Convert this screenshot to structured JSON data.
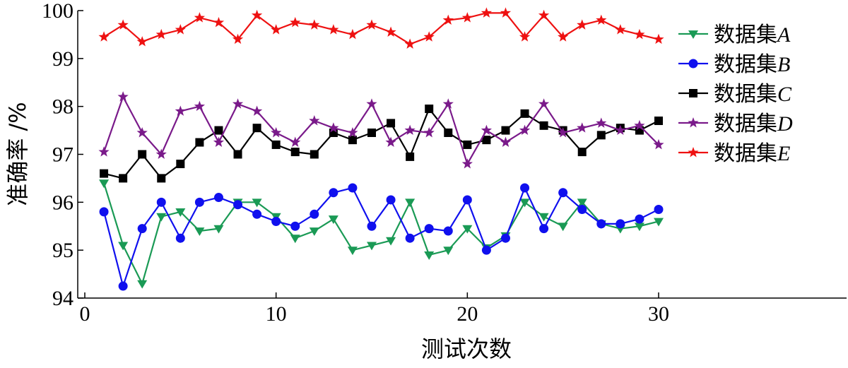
{
  "chart_data": {
    "type": "line",
    "title": "",
    "xlabel": "测试次数",
    "ylabel": "准确率 /%",
    "xlim": [
      0,
      39
    ],
    "ylim": [
      94,
      100
    ],
    "xticks": [
      "0",
      "10",
      "20",
      "30"
    ],
    "yticks": [
      "94",
      "95",
      "96",
      "97",
      "98",
      "99",
      "100"
    ],
    "x": [
      1,
      2,
      3,
      4,
      5,
      6,
      7,
      8,
      9,
      10,
      11,
      12,
      13,
      14,
      15,
      16,
      17,
      18,
      19,
      20,
      21,
      22,
      23,
      24,
      25,
      26,
      27,
      28,
      29,
      30
    ],
    "legend_position": "top-right",
    "series": [
      {
        "name": "数据集",
        "name_suffix": "A",
        "color": "#1a9a55",
        "marker": "triangle-down",
        "values": [
          96.4,
          95.1,
          94.3,
          95.7,
          95.8,
          95.4,
          95.45,
          96.0,
          96.0,
          95.7,
          95.25,
          95.4,
          95.65,
          95.0,
          95.1,
          95.2,
          96.0,
          94.9,
          95.0,
          95.45,
          95.05,
          95.3,
          96.0,
          95.7,
          95.5,
          96.0,
          95.55,
          95.45,
          95.5,
          95.6
        ]
      },
      {
        "name": "数据集",
        "name_suffix": "B",
        "color": "#1010ee",
        "marker": "circle",
        "values": [
          95.8,
          94.25,
          95.45,
          96.0,
          95.25,
          96.0,
          96.1,
          95.95,
          95.75,
          95.6,
          95.5,
          95.75,
          96.2,
          96.3,
          95.5,
          96.05,
          95.25,
          95.45,
          95.4,
          96.05,
          95.0,
          95.25,
          96.3,
          95.45,
          96.2,
          95.85,
          95.55,
          95.55,
          95.65,
          95.85
        ]
      },
      {
        "name": "数据集",
        "name_suffix": "C",
        "color": "#000000",
        "marker": "square",
        "values": [
          96.6,
          96.5,
          97.0,
          96.5,
          96.8,
          97.25,
          97.5,
          97.0,
          97.55,
          97.2,
          97.05,
          97.0,
          97.45,
          97.3,
          97.45,
          97.65,
          96.95,
          97.95,
          97.45,
          97.2,
          97.3,
          97.5,
          97.85,
          97.6,
          97.5,
          97.05,
          97.4,
          97.55,
          97.5,
          97.7
        ]
      },
      {
        "name": "数据集",
        "name_suffix": "D",
        "color": "#7a1a8a",
        "marker": "star",
        "values": [
          97.05,
          98.2,
          97.45,
          97.0,
          97.9,
          98.0,
          97.25,
          98.05,
          97.9,
          97.45,
          97.25,
          97.7,
          97.55,
          97.45,
          98.05,
          97.25,
          97.5,
          97.45,
          98.05,
          96.8,
          97.5,
          97.25,
          97.5,
          98.05,
          97.45,
          97.55,
          97.65,
          97.5,
          97.6,
          97.2
        ]
      },
      {
        "name": "数据集",
        "name_suffix": "E",
        "color": "#ee1111",
        "marker": "star",
        "values": [
          99.45,
          99.7,
          99.35,
          99.5,
          99.6,
          99.85,
          99.75,
          99.4,
          99.9,
          99.6,
          99.75,
          99.7,
          99.6,
          99.5,
          99.7,
          99.55,
          99.3,
          99.45,
          99.8,
          99.85,
          99.95,
          99.95,
          99.45,
          99.9,
          99.45,
          99.7,
          99.8,
          99.6,
          99.5,
          99.4
        ]
      }
    ]
  }
}
